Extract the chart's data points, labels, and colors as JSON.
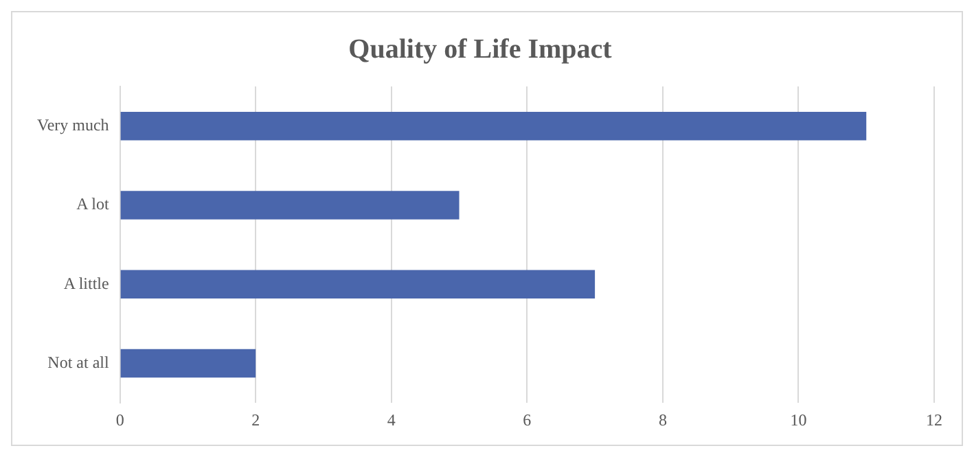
{
  "chart_data": {
    "type": "bar",
    "title": "Quality of Life Impact",
    "orientation": "horizontal",
    "categories": [
      "Very much",
      "A lot",
      "A little",
      "Not at all"
    ],
    "values": [
      11,
      5,
      7,
      2
    ],
    "color": "#4a66ac",
    "xlim": [
      0,
      12
    ],
    "xticks": [
      0,
      2,
      4,
      6,
      8,
      10,
      12
    ],
    "grid": "x",
    "legend": false
  }
}
